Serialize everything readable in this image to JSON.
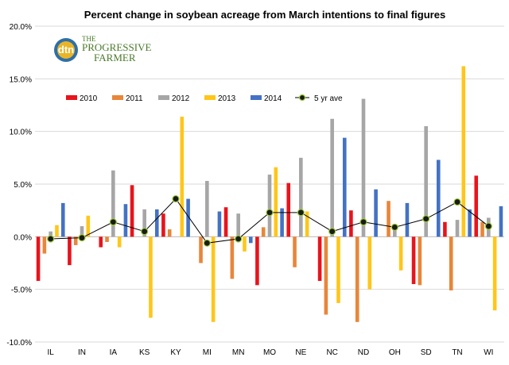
{
  "chart_data": {
    "type": "bar",
    "title": "Percent change in soybean acreage from March intentions to final figures",
    "categories": [
      "IL",
      "IN",
      "IA",
      "KS",
      "KY",
      "MI",
      "MN",
      "MO",
      "NE",
      "NC",
      "ND",
      "OH",
      "SD",
      "TN",
      "WI"
    ],
    "series": [
      {
        "name": "2010",
        "color": "#e8141c",
        "values": [
          -4.2,
          -2.7,
          -1.0,
          4.9,
          2.2,
          0.0,
          2.8,
          -4.6,
          5.1,
          -4.2,
          2.5,
          0.0,
          -4.5,
          1.4,
          5.8
        ]
      },
      {
        "name": "2011",
        "color": "#e8863a",
        "values": [
          -1.6,
          -0.8,
          -0.5,
          0.0,
          0.7,
          -2.5,
          -4.0,
          0.9,
          -2.9,
          -7.4,
          -8.1,
          3.4,
          -4.6,
          -5.1,
          1.4
        ]
      },
      {
        "name": "2012",
        "color": "#a6a6a6",
        "values": [
          0.5,
          1.0,
          6.3,
          2.6,
          0.0,
          5.3,
          2.2,
          5.9,
          7.5,
          11.2,
          13.1,
          0.6,
          10.5,
          1.6,
          1.8
        ]
      },
      {
        "name": "2013",
        "color": "#ffc61a",
        "values": [
          1.1,
          2.0,
          -1.0,
          -7.7,
          11.4,
          -8.1,
          -1.4,
          6.6,
          2.4,
          -6.3,
          -5.0,
          -3.2,
          0.0,
          16.2,
          -7.0
        ]
      },
      {
        "name": "2014",
        "color": "#4472c4",
        "values": [
          3.2,
          0.0,
          3.1,
          2.6,
          3.6,
          2.4,
          -0.6,
          2.7,
          0.0,
          9.4,
          4.5,
          3.2,
          7.3,
          2.6,
          2.9
        ]
      }
    ],
    "line_series": {
      "name": "5 yr ave",
      "values": [
        -0.2,
        -0.1,
        1.4,
        0.5,
        3.6,
        -0.6,
        -0.2,
        2.3,
        2.3,
        0.5,
        1.4,
        0.9,
        1.7,
        3.3,
        1.0
      ]
    },
    "yticks": [
      "20.0%",
      "15.0%",
      "10.0%",
      "5.0%",
      "0.0%",
      "-5.0%",
      "-10.0%"
    ],
    "ylim": [
      -10,
      20
    ],
    "grid": true,
    "legend": "top-left"
  },
  "logo": {
    "dtn": "dtn",
    "line1": "THE",
    "line2": "PROGRESSIVE",
    "line3": "FARMER"
  }
}
